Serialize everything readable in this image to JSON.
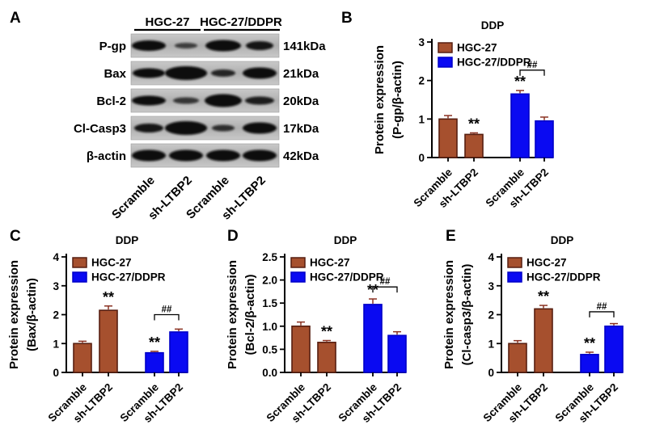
{
  "panel_letters": [
    "A",
    "B",
    "C",
    "D",
    "E"
  ],
  "colors": {
    "brown_fill": "#A6502E",
    "brown_border": "#571E10",
    "blue_fill": "#0A0AF2",
    "blue_border": "#0000C8",
    "error_bar": "#8B3222",
    "axis": "#000000",
    "strip_light": "#C9C9C9",
    "strip_dark": "#AFAFAF",
    "band": "#0D0D0D"
  },
  "western_blot": {
    "group_labels": [
      "HGC-27",
      "HGC-27/DDPR"
    ],
    "lane_labels": [
      "Scramble",
      "sh-LTBP2",
      "Scramble",
      "sh-LTBP2"
    ],
    "rows": [
      {
        "protein": "P-gp",
        "kda": "141kDa",
        "bands": [
          [
            21,
            6.5,
            1
          ],
          [
            14,
            3.5,
            0.7
          ],
          [
            22,
            7,
            1
          ],
          [
            17,
            5.5,
            0.95
          ]
        ]
      },
      {
        "protein": "Bax",
        "kda": "21kDa",
        "bands": [
          [
            20,
            6,
            1
          ],
          [
            26,
            8.5,
            1
          ],
          [
            15,
            4.5,
            0.85
          ],
          [
            21,
            7,
            1
          ]
        ]
      },
      {
        "protein": "Bcl-2",
        "kda": "20kDa",
        "bands": [
          [
            21,
            6,
            1
          ],
          [
            16,
            4,
            0.75
          ],
          [
            23,
            8,
            1
          ],
          [
            18,
            5,
            0.9
          ]
        ]
      },
      {
        "protein": "Cl-Casp3",
        "kda": "17kDa",
        "bands": [
          [
            18,
            5.5,
            0.95
          ],
          [
            26,
            8.5,
            1
          ],
          [
            14,
            4,
            0.8
          ],
          [
            21,
            7,
            1
          ]
        ]
      },
      {
        "protein": "β-actin",
        "kda": "42kDa",
        "bands": [
          [
            21,
            7,
            1
          ],
          [
            21,
            7,
            1
          ],
          [
            21,
            7,
            1
          ],
          [
            21,
            7,
            1
          ]
        ]
      }
    ]
  },
  "chart_data": [
    {
      "panel": "B",
      "type": "bar",
      "title": "DDP",
      "ylabel_line1": "Protein expression",
      "ylabel_line2": "(P-gp/β-actin)",
      "categories": [
        "Scramble",
        "sh-LTBP2",
        "Scramble",
        "sh-LTBP2"
      ],
      "series": [
        {
          "name": "HGC-27",
          "values": [
            1.0,
            0.6
          ],
          "errors": [
            0.09,
            0.04
          ]
        },
        {
          "name": "HGC-27/DDPR",
          "values": [
            1.65,
            0.95
          ],
          "errors": [
            0.09,
            0.1
          ]
        }
      ],
      "ylim": [
        0,
        3
      ],
      "yticks": [
        "0",
        "1",
        "2",
        "3"
      ],
      "legend_position": "top-left-inside",
      "grid": false,
      "significance": {
        "star_label": "**",
        "star_bars": [
          1,
          2
        ],
        "bracket": {
          "from": 2,
          "to": 3,
          "label": "##",
          "height": 2.27
        }
      }
    },
    {
      "panel": "C",
      "type": "bar",
      "title": "DDP",
      "ylabel_line1": "Protein expression",
      "ylabel_line2": "(Bax/β-actin)",
      "categories": [
        "Scramble",
        "sh-LTBP2",
        "Scramble",
        "sh-LTBP2"
      ],
      "series": [
        {
          "name": "HGC-27",
          "values": [
            1.0,
            2.15
          ],
          "errors": [
            0.08,
            0.15
          ]
        },
        {
          "name": "HGC-27/DDPR",
          "values": [
            0.68,
            1.4
          ],
          "errors": [
            0.05,
            0.1
          ]
        }
      ],
      "ylim": [
        0,
        4
      ],
      "yticks": [
        "0",
        "1",
        "2",
        "3",
        "4"
      ],
      "legend_position": "top-left-inside",
      "grid": false,
      "significance": {
        "star_label": "**",
        "star_bars": [
          1,
          2
        ],
        "bracket": {
          "from": 2,
          "to": 3,
          "label": "##",
          "height": 2.0
        }
      }
    },
    {
      "panel": "D",
      "type": "bar",
      "title": "DDP",
      "ylabel_line1": "Protein expression",
      "ylabel_line2": "(Bcl-2/β-actin)",
      "categories": [
        "Scramble",
        "sh-LTBP2",
        "Scramble",
        "sh-LTBP2"
      ],
      "series": [
        {
          "name": "HGC-27",
          "values": [
            1.0,
            0.65
          ],
          "errors": [
            0.09,
            0.04
          ]
        },
        {
          "name": "HGC-27/DDPR",
          "values": [
            1.47,
            0.8
          ],
          "errors": [
            0.12,
            0.08
          ]
        }
      ],
      "ylim": [
        0,
        2.5
      ],
      "yticks": [
        "0.0",
        "0.5",
        "1.0",
        "1.5",
        "2.0",
        "2.5"
      ],
      "legend_position": "top-left-inside",
      "grid": false,
      "significance": {
        "star_label": "**",
        "star_bars": [
          1,
          2
        ],
        "bracket": {
          "from": 2,
          "to": 3,
          "label": "##",
          "height": 1.85
        }
      }
    },
    {
      "panel": "E",
      "type": "bar",
      "title": "DDP",
      "ylabel_line1": "Protein expression",
      "ylabel_line2": "(Cl-casp3/β-actin)",
      "categories": [
        "Scramble",
        "sh-LTBP2",
        "Scramble",
        "sh-LTBP2"
      ],
      "series": [
        {
          "name": "HGC-27",
          "values": [
            1.0,
            2.2
          ],
          "errors": [
            0.1,
            0.12
          ]
        },
        {
          "name": "HGC-27/DDPR",
          "values": [
            0.62,
            1.6
          ],
          "errors": [
            0.08,
            0.09
          ]
        }
      ],
      "ylim": [
        0,
        4
      ],
      "yticks": [
        "0",
        "1",
        "2",
        "3",
        "4"
      ],
      "legend_position": "top-left-inside",
      "grid": false,
      "significance": {
        "star_label": "**",
        "star_bars": [
          1,
          2
        ],
        "bracket": {
          "from": 2,
          "to": 3,
          "label": "##",
          "height": 2.1
        }
      }
    }
  ]
}
